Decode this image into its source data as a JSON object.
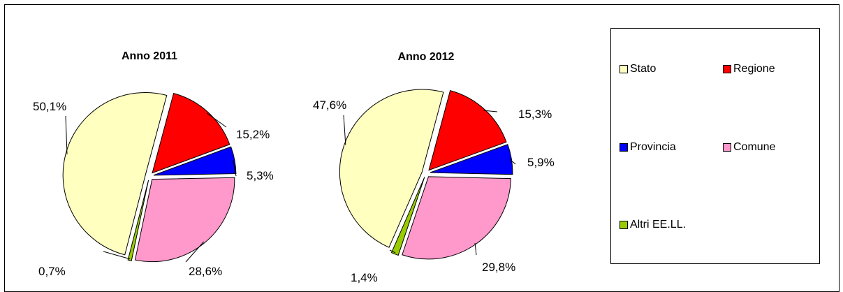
{
  "chart_data": [
    {
      "type": "pie",
      "title": "Anno 2011",
      "slices": [
        {
          "label": "Stato",
          "value": 50.1,
          "display": "50,1%"
        },
        {
          "label": "Regione",
          "value": 15.2,
          "display": "15,2%"
        },
        {
          "label": "Provincia",
          "value": 5.3,
          "display": "5,3%"
        },
        {
          "label": "Comune",
          "value": 28.6,
          "display": "28,6%"
        },
        {
          "label": "Altri EE.LL.",
          "value": 0.7,
          "display": "0,7%"
        }
      ]
    },
    {
      "type": "pie",
      "title": "Anno 2012",
      "slices": [
        {
          "label": "Stato",
          "value": 47.6,
          "display": "47,6%"
        },
        {
          "label": "Regione",
          "value": 15.3,
          "display": "15,3%"
        },
        {
          "label": "Provincia",
          "value": 5.9,
          "display": "5,9%"
        },
        {
          "label": "Comune",
          "value": 29.8,
          "display": "29,8%"
        },
        {
          "label": "Altri EE.LL.",
          "value": 1.4,
          "display": "1,4%"
        }
      ]
    }
  ],
  "legend": {
    "items": [
      {
        "label": "Stato",
        "color": "#ffffc0"
      },
      {
        "label": "Regione",
        "color": "#ff0000"
      },
      {
        "label": "Provincia",
        "color": "#0000ff"
      },
      {
        "label": "Comune",
        "color": "#ff99cc"
      },
      {
        "label": "Altri EE.LL.",
        "color": "#99cc00"
      }
    ]
  },
  "colors": {
    "Stato": "#ffffc0",
    "Regione": "#ff0000",
    "Provincia": "#0000ff",
    "Comune": "#ff99cc",
    "Altri EE.LL.": "#99cc00"
  }
}
